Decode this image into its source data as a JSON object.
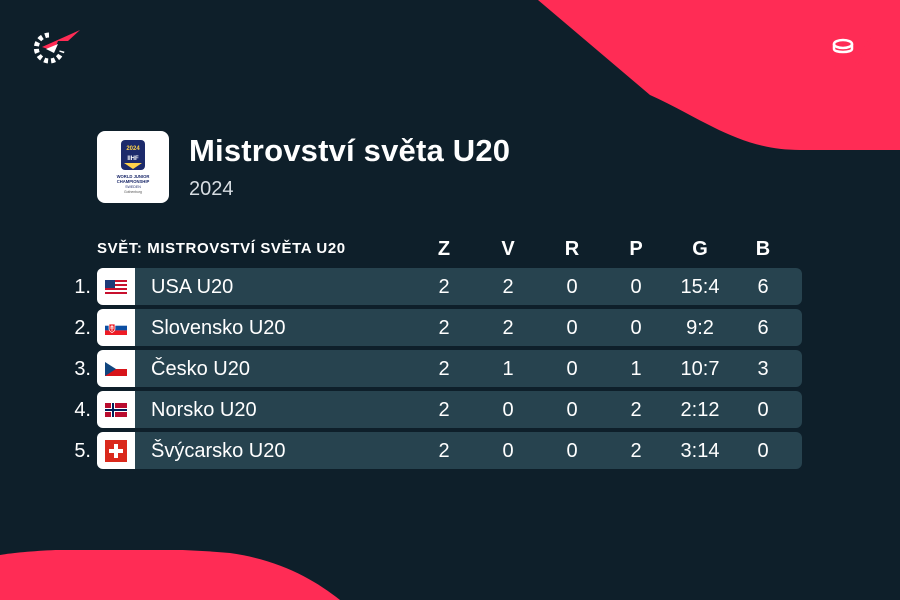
{
  "colors": {
    "background": "#0e1f2a",
    "accent": "#ff2c55",
    "row_background": "#27434f",
    "text": "#ffffff"
  },
  "brand": {
    "logo_icon": "flashscore-logo-icon"
  },
  "sport": {
    "icon": "ice-hockey-icon"
  },
  "league": {
    "logo_icon": "iihf-world-junior-championship-logo-icon",
    "logo_text": "2024 IIHF WORLD JUNIOR CHAMPIONSHIP SWEDEN Gothenburg",
    "title": "Mistrovství světa U20",
    "season": "2024"
  },
  "table": {
    "group_label": "SVĚT: MISTROVSTVÍ SVĚTA U20",
    "columns": [
      "Z",
      "V",
      "R",
      "P",
      "G",
      "B"
    ],
    "rows": [
      {
        "rank": "1.",
        "flag": "usa-flag-icon",
        "team": "USA U20",
        "Z": "2",
        "V": "2",
        "R": "0",
        "P": "0",
        "G": "15:4",
        "B": "6"
      },
      {
        "rank": "2.",
        "flag": "slovakia-flag-icon",
        "team": "Slovensko U20",
        "Z": "2",
        "V": "2",
        "R": "0",
        "P": "0",
        "G": "9:2",
        "B": "6"
      },
      {
        "rank": "3.",
        "flag": "czechia-flag-icon",
        "team": "Česko U20",
        "Z": "2",
        "V": "1",
        "R": "0",
        "P": "1",
        "G": "10:7",
        "B": "3"
      },
      {
        "rank": "4.",
        "flag": "norway-flag-icon",
        "team": "Norsko U20",
        "Z": "2",
        "V": "0",
        "R": "0",
        "P": "2",
        "G": "2:12",
        "B": "0"
      },
      {
        "rank": "5.",
        "flag": "switzerland-flag-icon",
        "team": "Švýcarsko U20",
        "Z": "2",
        "V": "0",
        "R": "0",
        "P": "2",
        "G": "3:14",
        "B": "0"
      }
    ]
  }
}
